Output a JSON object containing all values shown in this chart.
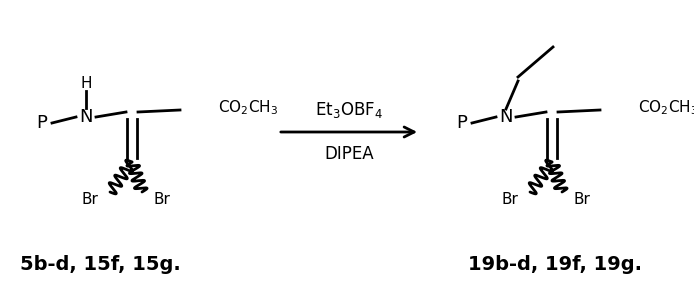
{
  "bg_color": "#ffffff",
  "fig_width": 6.94,
  "fig_height": 2.93,
  "dpi": 100,
  "label_left": "5b-d, 15f, 15g.",
  "label_right": "19b-d, 19f, 19g.",
  "reagent_top": "Et$_3$OBF$_4$",
  "reagent_bottom": "DIPEA",
  "lw": 2.0,
  "fs_main": 13,
  "fs_small": 11,
  "color": "#000000"
}
